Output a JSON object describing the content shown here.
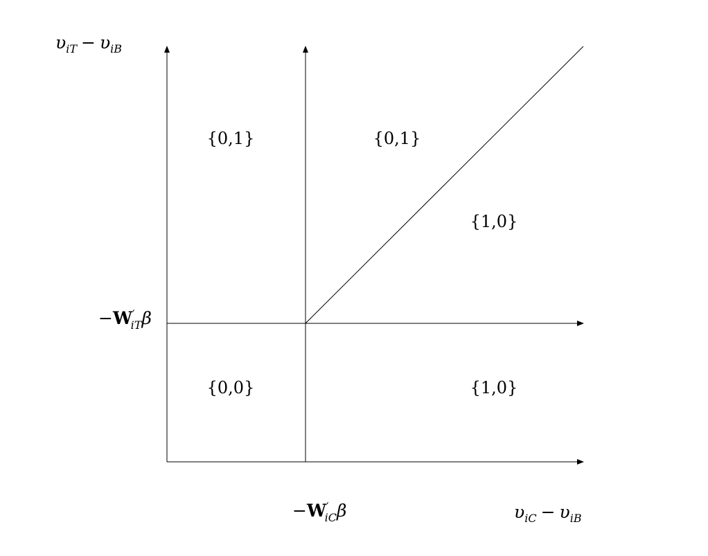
{
  "diagram": {
    "y_axis_label": {
      "v1": "υ",
      "s1": "iT",
      "op": "−",
      "v2": "υ",
      "s2": "iB"
    },
    "x_axis_label": {
      "v1": "υ",
      "s1": "iC",
      "op": "−",
      "v2": "υ",
      "s2": "iB"
    },
    "y_threshold": {
      "minus": "−",
      "W": "W",
      "prime": "′",
      "sub": "iT",
      "beta": "β"
    },
    "x_threshold": {
      "minus": "−",
      "W": "W",
      "prime": "′",
      "sub": "iC",
      "beta": "β"
    },
    "regions": {
      "top_left": "{0,1}",
      "top_middle": "{0,1}",
      "right_upper": "{1,0}",
      "bottom_left": "{0,0}",
      "bottom_right": "{1,0}"
    }
  }
}
